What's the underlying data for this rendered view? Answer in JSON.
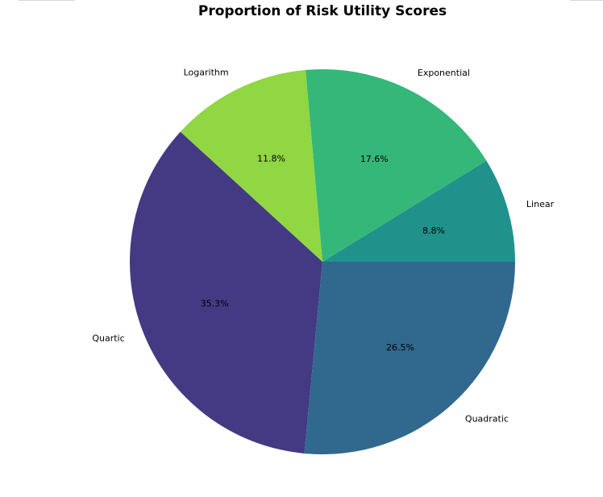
{
  "chart_data": {
    "type": "pie",
    "title": "Proportion of Risk Utility Scores",
    "start_angle_deg": 0,
    "direction": "counterclockwise",
    "slices": [
      {
        "label": "Linear",
        "percent": 8.8,
        "display": "8.8%",
        "color": "#21918c"
      },
      {
        "label": "Exponential",
        "percent": 17.6,
        "display": "17.6%",
        "color": "#35b779"
      },
      {
        "label": "Logarithm",
        "percent": 11.8,
        "display": "11.8%",
        "color": "#90d743"
      },
      {
        "label": "Quartic",
        "percent": 35.3,
        "display": "35.3%",
        "color": "#443983"
      },
      {
        "label": "Quadratic",
        "percent": 26.5,
        "display": "26.5%",
        "color": "#31688e"
      }
    ]
  }
}
